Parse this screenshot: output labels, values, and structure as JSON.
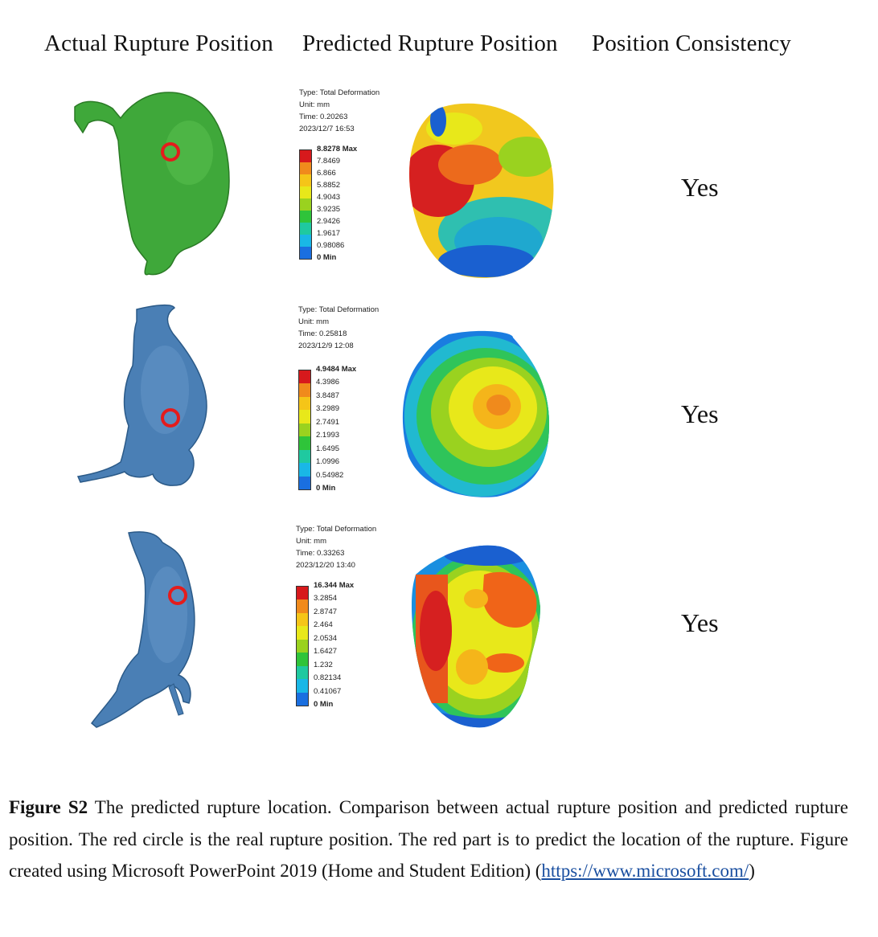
{
  "headers": {
    "actual": "Actual Rupture Position",
    "predicted": "Predicted Rupture Position",
    "consistency": "Position Consistency"
  },
  "rows": [
    {
      "model_color": "#3fa83a",
      "type": "Type: Total Deformation",
      "unit": "Unit: mm",
      "time": "Time: 0.20263",
      "date": "2023/12/7 16:53",
      "legend": [
        "8.8278 Max",
        "7.8469",
        "6.866",
        "5.8852",
        "4.9043",
        "3.9235",
        "2.9426",
        "1.9617",
        "0.98086",
        "0 Min"
      ],
      "consistency": "Yes"
    },
    {
      "model_color": "#4a7fb5",
      "type": "Type: Total Deformation",
      "unit": "Unit: mm",
      "time": "Time: 0.25818",
      "date": "2023/12/9 12:08",
      "legend": [
        "4.9484 Max",
        "4.3986",
        "3.8487",
        "3.2989",
        "2.7491",
        "2.1993",
        "1.6495",
        "1.0996",
        "0.54982",
        "0 Min"
      ],
      "consistency": "Yes"
    },
    {
      "model_color": "#4a7fb5",
      "type": "Type: Total Deformation",
      "unit": "Unit: mm",
      "time": "Time: 0.33263",
      "date": "2023/12/20 13:40",
      "legend": [
        "16.344 Max",
        "3.2854",
        "2.8747",
        "2.464",
        "2.0534",
        "1.6427",
        "1.232",
        "0.82134",
        "0.41067",
        "0 Min"
      ],
      "consistency": "Yes"
    }
  ],
  "legend_colors": [
    "#d7191c",
    "#f08a1c",
    "#f5c518",
    "#e8e81a",
    "#9ad21f",
    "#2fc43a",
    "#1fc9a0",
    "#19b7e6",
    "#1a6fe0",
    "#1414d0"
  ],
  "caption": {
    "label": "Figure S2",
    "text": " The predicted rupture location. Comparison between actual rupture position and predicted rupture position. The red circle is the real rupture position. The red part is to predict the location of the rupture. Figure created using Microsoft PowerPoint 2019 (Home and Student Edition) (",
    "link": "https://www.microsoft.com/",
    "tail": ")"
  }
}
